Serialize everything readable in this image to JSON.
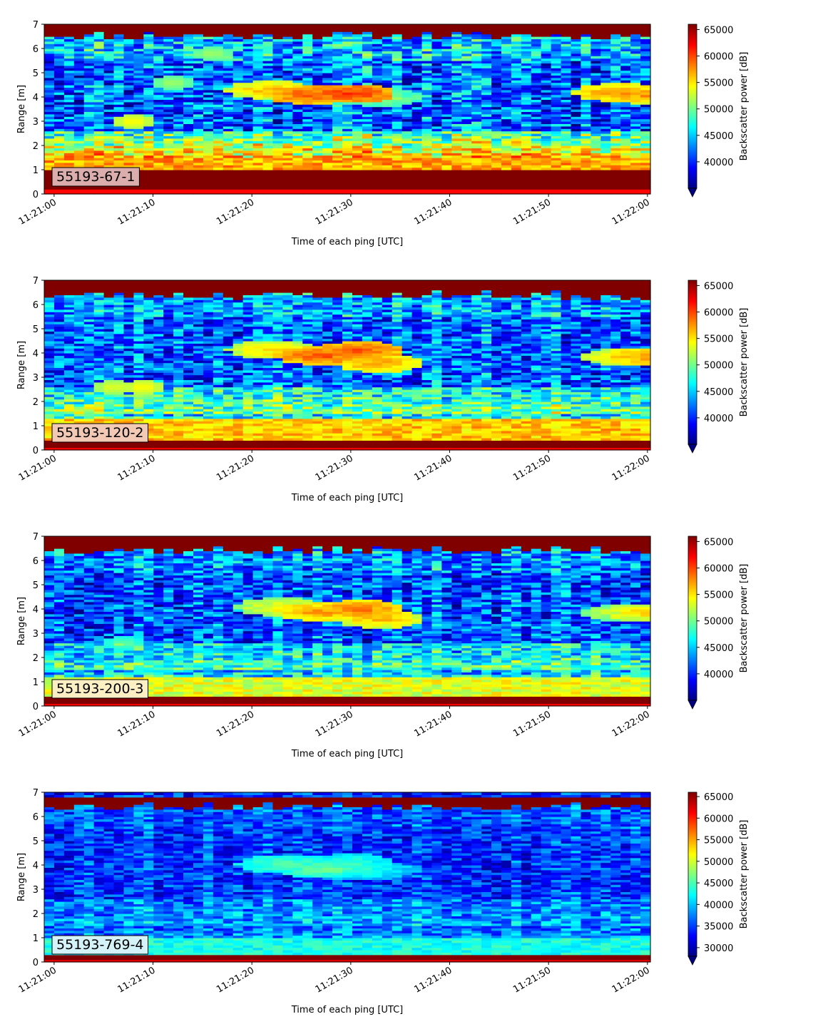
{
  "chart_data": [
    {
      "type": "heatmap",
      "label": "55193-67-1",
      "label_bg": "#dcadad",
      "xlabel": "Time of each ping [UTC]",
      "ylabel": "Range [m]",
      "x_ticks": [
        "11:21:00",
        "11:21:10",
        "11:21:20",
        "11:21:30",
        "11:21:40",
        "11:21:50",
        "11:22:00"
      ],
      "xlim_seconds": [
        -1,
        60.3
      ],
      "ylim": [
        0,
        7
      ],
      "y_ticks": [
        0,
        1,
        2,
        3,
        4,
        5,
        6,
        7
      ],
      "colorbar": {
        "label": "Backscatter power [dB]",
        "vmin": 35000,
        "vmax": 66000,
        "ticks": [
          40000,
          45000,
          50000,
          55000,
          60000,
          65000
        ],
        "colormap": "jet",
        "extend": "min"
      },
      "n_pings": 61,
      "n_bins": 70,
      "features": {
        "surface_band": [
          6.55,
          7.0,
          66000
        ],
        "near_band": [
          0.25,
          1.05,
          66000
        ],
        "bright_zone": [
          1.05,
          1.5,
          57000
        ],
        "mid_zone_level": 49500,
        "background_level": 42000,
        "layer": [
          [
            22,
            4.3,
            57000
          ],
          [
            26,
            4.1,
            60000
          ],
          [
            30,
            4.15,
            61000
          ],
          [
            33,
            4.0,
            52000
          ],
          [
            57,
            4.2,
            58000
          ],
          [
            60,
            4.1,
            58000
          ]
        ],
        "diag": [
          [
            8,
            3.0,
            55000
          ],
          [
            12,
            4.6,
            52000
          ],
          [
            16,
            5.8,
            52000
          ]
        ],
        "noise": 5500,
        "seed": 11
      }
    },
    {
      "type": "heatmap",
      "label": "55193-120-2",
      "label_bg": "#f2c9b4",
      "xlabel": "Time of each ping [UTC]",
      "ylabel": "Range [m]",
      "x_ticks": [
        "11:21:00",
        "11:21:10",
        "11:21:20",
        "11:21:30",
        "11:21:40",
        "11:21:50",
        "11:22:00"
      ],
      "xlim_seconds": [
        -1,
        60.3
      ],
      "ylim": [
        0,
        7
      ],
      "y_ticks": [
        0,
        1,
        2,
        3,
        4,
        5,
        6,
        7
      ],
      "colorbar": {
        "label": "Backscatter power [dB]",
        "vmin": 35000,
        "vmax": 66000,
        "ticks": [
          40000,
          45000,
          50000,
          55000,
          60000,
          65000
        ],
        "colormap": "jet",
        "extend": "min"
      },
      "n_pings": 61,
      "n_bins": 70,
      "features": {
        "surface_band": [
          6.4,
          7.0,
          66000
        ],
        "near_band": [
          0.1,
          0.45,
          66000
        ],
        "bright_zone": [
          0.45,
          1.3,
          56000
        ],
        "mid_zone_level": 47500,
        "background_level": 42000,
        "layer": [
          [
            22,
            4.15,
            56000
          ],
          [
            27,
            3.9,
            60000
          ],
          [
            31,
            4.1,
            60000
          ],
          [
            33,
            3.6,
            58000
          ],
          [
            58,
            3.85,
            56000
          ],
          [
            60,
            3.85,
            58000
          ]
        ],
        "diag": [
          [
            6,
            2.6,
            54000
          ],
          [
            9,
            2.6,
            55000
          ]
        ],
        "noise": 5000,
        "seed": 23
      }
    },
    {
      "type": "heatmap",
      "label": "55193-200-3",
      "label_bg": "#fcefc4",
      "xlabel": "Time of each ping [UTC]",
      "ylabel": "Range [m]",
      "x_ticks": [
        "11:21:00",
        "11:21:10",
        "11:21:20",
        "11:21:30",
        "11:21:40",
        "11:21:50",
        "11:22:00"
      ],
      "xlim_seconds": [
        -1,
        60.3
      ],
      "ylim": [
        0,
        7
      ],
      "y_ticks": [
        0,
        1,
        2,
        3,
        4,
        5,
        6,
        7
      ],
      "colorbar": {
        "label": "Backscatter power [dB]",
        "vmin": 35000,
        "vmax": 66000,
        "ticks": [
          40000,
          45000,
          50000,
          55000,
          60000,
          65000
        ],
        "colormap": "jet",
        "extend": "min"
      },
      "n_pings": 61,
      "n_bins": 70,
      "features": {
        "surface_band": [
          6.45,
          6.95,
          66000
        ],
        "near_band": [
          0.15,
          0.4,
          66000
        ],
        "bright_zone": [
          0.4,
          1.2,
          53500
        ],
        "mid_zone_level": 46500,
        "background_level": 41500,
        "layer": [
          [
            23,
            4.1,
            55000
          ],
          [
            27,
            3.9,
            58000
          ],
          [
            31,
            4.0,
            59000
          ],
          [
            33,
            3.6,
            57000
          ],
          [
            58,
            3.85,
            54000
          ],
          [
            60,
            3.85,
            56000
          ]
        ],
        "diag": [
          [
            7,
            2.6,
            50000
          ]
        ],
        "noise": 5000,
        "seed": 37
      }
    },
    {
      "type": "heatmap",
      "label": "55193-769-4",
      "label_bg": "#d3f3f8",
      "xlabel": "Time of each ping [UTC]",
      "ylabel": "Range [m]",
      "x_ticks": [
        "11:21:00",
        "11:21:10",
        "11:21:20",
        "11:21:30",
        "11:21:40",
        "11:21:50",
        "11:22:00"
      ],
      "xlim_seconds": [
        -1,
        60.3
      ],
      "ylim": [
        0,
        7
      ],
      "y_ticks": [
        0,
        1,
        2,
        3,
        4,
        5,
        6,
        7
      ],
      "colorbar": {
        "label": "Backscatter power [dB]",
        "vmin": 28000,
        "vmax": 66000,
        "ticks": [
          30000,
          35000,
          40000,
          45000,
          50000,
          55000,
          60000,
          65000
        ],
        "colormap": "jet",
        "extend": "min"
      },
      "n_pings": 61,
      "n_bins": 70,
      "features": {
        "surface_band": [
          6.45,
          6.75,
          66000
        ],
        "near_band": [
          0.15,
          0.35,
          66000
        ],
        "bright_zone": [
          0.35,
          1.0,
          43000
        ],
        "mid_zone_level": 38500,
        "background_level": 35000,
        "layer": [
          [
            23,
            4.05,
            46000
          ],
          [
            27,
            3.85,
            47000
          ],
          [
            30,
            4.1,
            45000
          ],
          [
            32,
            3.8,
            44000
          ]
        ],
        "diag": [],
        "noise": 4500,
        "seed": 53
      }
    }
  ]
}
